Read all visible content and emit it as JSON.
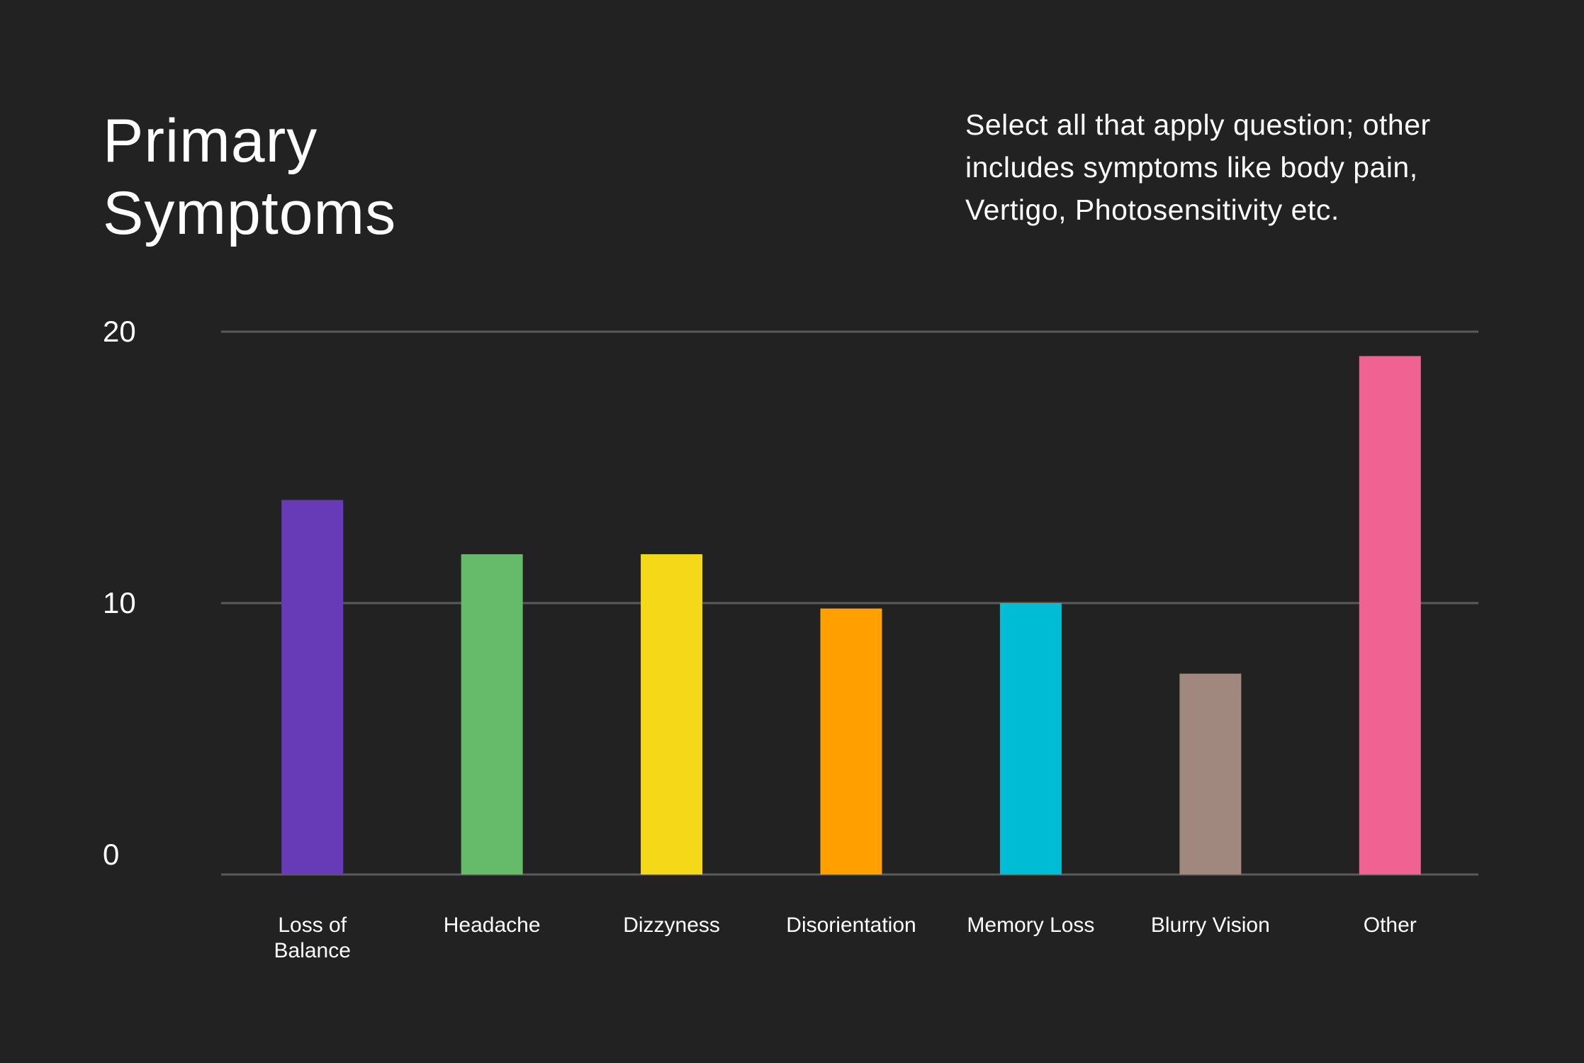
{
  "title_line1": "Primary",
  "title_line2": "Symptoms",
  "note": "Select all that apply question; other includes symptoms like body pain, Vertigo, Photosensitivity etc.",
  "colors": {
    "background": "#222222",
    "gridline": "#5a5a5a",
    "text": "#ffffff"
  },
  "chart_data": {
    "type": "bar",
    "categories": [
      [
        "Loss of",
        "Balance"
      ],
      [
        "Headache"
      ],
      [
        "Dizzyness"
      ],
      [
        "Disorientation"
      ],
      [
        "Memory Loss"
      ],
      [
        "Blurry Vision"
      ],
      [
        "Other"
      ]
    ],
    "values": [
      13.8,
      11.8,
      11.8,
      9.8,
      10.0,
      7.4,
      19.1
    ],
    "colors": [
      "#673ab7",
      "#66bb6a",
      "#f5d818",
      "#ffa000",
      "#00bcd4",
      "#a1887f",
      "#f06292"
    ],
    "yticks": [
      0,
      10,
      20
    ],
    "ylim": [
      0,
      20
    ],
    "grid": true,
    "title": "Primary Symptoms",
    "xlabel": "",
    "ylabel": ""
  }
}
